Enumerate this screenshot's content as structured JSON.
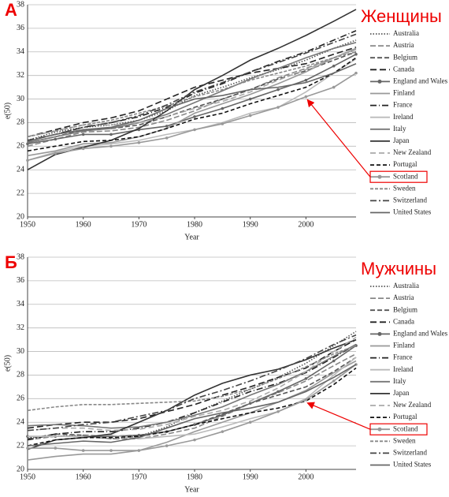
{
  "chart_data": [
    {
      "type": "line",
      "label": "А",
      "title": "Женщины",
      "y_label": "e(50)",
      "x_label": "Year",
      "x": [
        1950,
        1955,
        1960,
        1965,
        1970,
        1975,
        1980,
        1985,
        1990,
        1995,
        2000,
        2005,
        2009
      ],
      "xlim": [
        1950,
        2009
      ],
      "xticks": [
        1950,
        1960,
        1970,
        1980,
        1990,
        2000
      ],
      "ylim": [
        20,
        38
      ],
      "yticks": [
        20,
        22,
        24,
        26,
        28,
        30,
        32,
        34,
        36,
        38
      ],
      "grid": true,
      "highlight": 12,
      "series": [
        {
          "name": "Australia",
          "color": "#555",
          "dash": "1.5,2",
          "values": [
            26.5,
            27.2,
            27.6,
            27.8,
            28.2,
            29,
            30.3,
            31,
            31.8,
            32.5,
            33.3,
            34.3,
            35.0
          ]
        },
        {
          "name": "Austria",
          "color": "#888",
          "dash": "7,3",
          "values": [
            26,
            26.6,
            27.2,
            27.3,
            27.6,
            28.2,
            29,
            30,
            30.8,
            31.8,
            32.6,
            33.5,
            34.2
          ]
        },
        {
          "name": "Belgium",
          "color": "#555",
          "dash": "6,3",
          "values": [
            26.3,
            26.8,
            27.4,
            27.5,
            27.8,
            28.5,
            29.3,
            30,
            30.8,
            31.7,
            32.4,
            33.3,
            34
          ]
        },
        {
          "name": "Canada",
          "color": "#222",
          "dash": "8,4",
          "values": [
            26.8,
            27.4,
            28,
            28.4,
            29,
            30,
            31,
            31.6,
            32.2,
            32.6,
            33,
            33.8,
            34.4
          ]
        },
        {
          "name": "England and Wales",
          "color": "#666",
          "dash": "",
          "marker": true,
          "values": [
            26.2,
            26.6,
            27,
            27,
            27.4,
            27.7,
            28.5,
            29.2,
            30,
            30.8,
            31.6,
            32.8,
            33.8
          ]
        },
        {
          "name": "Finland",
          "color": "#999",
          "dash": "",
          "values": [
            25.2,
            25.6,
            26.2,
            26.3,
            26.8,
            27.5,
            28.8,
            29.6,
            30.4,
            31.3,
            32.3,
            33.5,
            34.3
          ]
        },
        {
          "name": "France",
          "color": "#222",
          "dash": "8,3,1,3",
          "values": [
            26.5,
            27,
            27.6,
            28,
            28.5,
            29.3,
            30.5,
            31.3,
            32.3,
            33.2,
            34.0,
            35.0,
            35.8
          ]
        },
        {
          "name": "Ireland",
          "color": "#bbb",
          "dash": "",
          "values": [
            24.8,
            25.5,
            26,
            26.2,
            26.5,
            27,
            27.4,
            28,
            28.8,
            29.3,
            30.6,
            32.2,
            33.4
          ]
        },
        {
          "name": "Italy",
          "color": "#777",
          "dash": "",
          "values": [
            26.3,
            26.8,
            27.3,
            27.5,
            28,
            28.7,
            29.7,
            30.7,
            31.7,
            32.6,
            33.5,
            34.3,
            34.8
          ]
        },
        {
          "name": "Japan",
          "color": "#333",
          "dash": "",
          "values": [
            24,
            25.3,
            25.9,
            26.5,
            27.5,
            29,
            30.8,
            32,
            33.3,
            34.3,
            35.4,
            36.6,
            37.6
          ]
        },
        {
          "name": "New Zealand",
          "color": "#aaa",
          "dash": "7,4",
          "values": [
            26.8,
            27.3,
            27.8,
            27.8,
            28,
            28.5,
            29.2,
            29.8,
            30.6,
            31.6,
            32.5,
            33.5,
            34.2
          ]
        },
        {
          "name": "Portugal",
          "color": "#111",
          "dash": "5,3",
          "values": [
            25.6,
            26,
            26.4,
            26.5,
            26.8,
            27.5,
            28.3,
            28.8,
            29.6,
            30.3,
            31,
            32.2,
            33.5
          ]
        },
        {
          "name": "Scotland",
          "color": "#999",
          "dash": "",
          "marker": true,
          "values": [
            24.8,
            25.4,
            25.8,
            26,
            26.3,
            26.7,
            27.4,
            27.9,
            28.6,
            29.3,
            30.2,
            31.0,
            32.2
          ]
        },
        {
          "name": "Sweden",
          "color": "#888",
          "dash": "4,2",
          "values": [
            26.8,
            27.3,
            27.8,
            28.2,
            28.8,
            29.4,
            30.2,
            30.8,
            31.6,
            32.2,
            32.8,
            33.5,
            34
          ]
        },
        {
          "name": "Switzerland",
          "color": "#444",
          "dash": "8,3,2,3",
          "values": [
            26.5,
            27,
            27.6,
            28,
            28.6,
            29.5,
            30.6,
            31.4,
            32.3,
            33.1,
            33.9,
            34.8,
            35.5
          ]
        },
        {
          "name": "United States",
          "color": "#666",
          "dash": "",
          "values": [
            26.4,
            27,
            27.4,
            27.6,
            28.2,
            29.2,
            30,
            30.3,
            30.8,
            31,
            31.4,
            32.2,
            33
          ]
        }
      ]
    },
    {
      "type": "line",
      "label": "Б",
      "title": "Мужчины",
      "y_label": "e(50)",
      "x_label": "Year",
      "x": [
        1950,
        1955,
        1960,
        1965,
        1970,
        1975,
        1980,
        1985,
        1990,
        1995,
        2000,
        2005,
        2009
      ],
      "xlim": [
        1950,
        2009
      ],
      "xticks": [
        1950,
        1960,
        1970,
        1980,
        1990,
        2000
      ],
      "ylim": [
        20,
        38
      ],
      "yticks": [
        20,
        22,
        24,
        26,
        28,
        30,
        32,
        34,
        36,
        38
      ],
      "grid": true,
      "highlight": 12,
      "series": [
        {
          "name": "Australia",
          "color": "#555",
          "dash": "1.5,2",
          "values": [
            22.7,
            22.8,
            22.9,
            22.6,
            22.8,
            23.6,
            24.8,
            25.8,
            26.8,
            27.8,
            29,
            30.5,
            31.7
          ]
        },
        {
          "name": "Austria",
          "color": "#888",
          "dash": "7,3",
          "values": [
            22.5,
            22.8,
            22.8,
            22.6,
            22.6,
            23,
            23.5,
            24.5,
            25.6,
            26.5,
            27.5,
            28.8,
            29.8
          ]
        },
        {
          "name": "Belgium",
          "color": "#555",
          "dash": "6,3",
          "values": [
            22.6,
            23,
            22.9,
            22.8,
            22.9,
            23.2,
            23.8,
            24.7,
            25.6,
            26.3,
            27,
            28.3,
            29.5
          ]
        },
        {
          "name": "Canada",
          "color": "#222",
          "dash": "8,4",
          "values": [
            23.5,
            23.8,
            24,
            24,
            24.3,
            24.9,
            25.5,
            26.3,
            27,
            27.8,
            28.6,
            30,
            31
          ]
        },
        {
          "name": "England and Wales",
          "color": "#666",
          "dash": "",
          "marker": true,
          "values": [
            22.8,
            22.8,
            22.8,
            22.8,
            22.9,
            23.2,
            23.8,
            24.6,
            25.6,
            26.6,
            27.7,
            29.2,
            30.5
          ]
        },
        {
          "name": "Finland",
          "color": "#999",
          "dash": "",
          "values": [
            20.8,
            21.1,
            21.3,
            21.3,
            21.6,
            22.3,
            23.2,
            24,
            24.8,
            25.7,
            26.7,
            28.2,
            29.2
          ]
        },
        {
          "name": "France",
          "color": "#222",
          "dash": "8,3,1,3",
          "values": [
            22.5,
            23,
            23.2,
            23.2,
            23.5,
            24,
            24.8,
            25.7,
            26.6,
            27.3,
            28.2,
            29.5,
            30.6
          ]
        },
        {
          "name": "Ireland",
          "color": "#bbb",
          "dash": "",
          "values": [
            22.8,
            22.8,
            22.8,
            22.9,
            22.6,
            22.8,
            23,
            23.6,
            24.3,
            24.9,
            26,
            28,
            29.5
          ]
        },
        {
          "name": "Italy",
          "color": "#777",
          "dash": "",
          "values": [
            23.7,
            23.8,
            23.7,
            23.5,
            23.6,
            24,
            24.6,
            25.3,
            26.3,
            27.2,
            28.3,
            29.6,
            30.6
          ]
        },
        {
          "name": "Japan",
          "color": "#333",
          "dash": "",
          "values": [
            21.7,
            22.5,
            22.7,
            23,
            24,
            25,
            26.3,
            27.3,
            28,
            28.5,
            29.3,
            30.3,
            31
          ]
        },
        {
          "name": "New Zealand",
          "color": "#aaa",
          "dash": "7,4",
          "values": [
            23.3,
            23.5,
            23.5,
            23.3,
            23.4,
            23.8,
            24.5,
            25,
            25.8,
            26.9,
            28.3,
            30,
            31.2
          ]
        },
        {
          "name": "Portugal",
          "color": "#111",
          "dash": "5,3",
          "values": [
            22,
            22.5,
            22.7,
            22.7,
            22.8,
            23.2,
            23.8,
            24.3,
            24.8,
            25.2,
            25.8,
            27.2,
            28.6
          ]
        },
        {
          "name": "Scotland",
          "color": "#999",
          "dash": "",
          "marker": true,
          "values": [
            21.8,
            21.8,
            21.6,
            21.6,
            21.6,
            22,
            22.5,
            23.2,
            24,
            24.9,
            25.9,
            27.5,
            28.9
          ]
        },
        {
          "name": "Sweden",
          "color": "#888",
          "dash": "4,2",
          "values": [
            25,
            25.3,
            25.5,
            25.5,
            25.6,
            25.7,
            25.8,
            26.2,
            26.8,
            27.7,
            28.7,
            29.8,
            30.5
          ]
        },
        {
          "name": "Switzerland",
          "color": "#444",
          "dash": "8,3,2,3",
          "values": [
            23.3,
            23.5,
            23.8,
            24,
            24.5,
            25,
            26,
            26.7,
            27.5,
            28.4,
            29.4,
            30.6,
            31.4
          ]
        },
        {
          "name": "United States",
          "color": "#666",
          "dash": "",
          "values": [
            22,
            22.2,
            22.4,
            22.3,
            22.7,
            23.5,
            24.3,
            24.8,
            25.2,
            25.7,
            26.6,
            27.8,
            28.9
          ]
        }
      ]
    }
  ]
}
